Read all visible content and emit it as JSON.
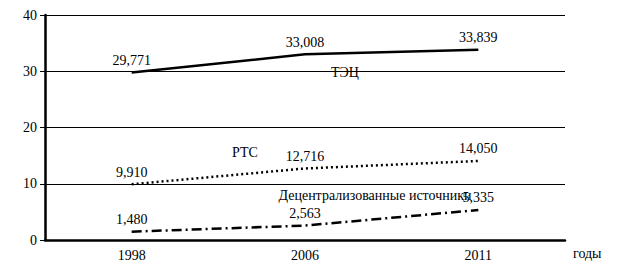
{
  "chart_data": {
    "type": "line",
    "x_label": "годы",
    "categories": [
      "1998",
      "2006",
      "2011"
    ],
    "ylim": [
      0,
      40
    ],
    "yticks": [
      0,
      10,
      20,
      30,
      40
    ],
    "grid": true,
    "data_labels": true,
    "series": [
      {
        "name": "ТЭЦ",
        "color": "#000000",
        "line_style": "solid",
        "values": [
          29.771,
          33.008,
          33.839
        ],
        "value_labels": [
          "29,771",
          "33,008",
          "33,839"
        ]
      },
      {
        "name": "РТС",
        "color": "#000000",
        "line_style": "dotted",
        "values": [
          9.91,
          12.716,
          14.05
        ],
        "value_labels": [
          "9,910",
          "12,716",
          "14,050"
        ]
      },
      {
        "name": "Децентрализованные источники",
        "color": "#000000",
        "line_style": "dashdot",
        "values": [
          1.48,
          2.563,
          5.335
        ],
        "value_labels": [
          "1,480",
          "2,563",
          "5,335"
        ]
      }
    ]
  }
}
